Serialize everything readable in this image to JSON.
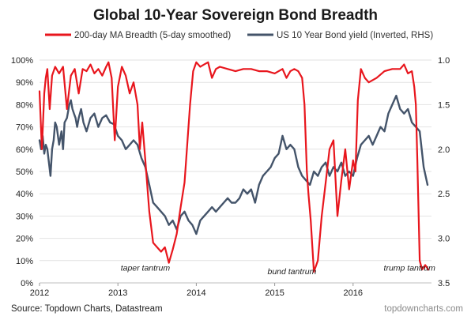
{
  "chart_data": {
    "type": "line",
    "title": "Global 10-Year Sovereign Bond Breadth",
    "x_ticks": [
      "2012",
      "2013",
      "2014",
      "2015",
      "2016"
    ],
    "xlim": [
      2012.0,
      2017.0
    ],
    "y_left": {
      "ticks": [
        "100%",
        "90%",
        "80%",
        "70%",
        "60%",
        "50%",
        "40%",
        "30%",
        "20%",
        "10%",
        "0%"
      ],
      "ylim": [
        0,
        100
      ],
      "unit": "%"
    },
    "y_right": {
      "ticks": [
        "1.0",
        "1.5",
        "2.0",
        "2.5",
        "3.0",
        "3.5"
      ],
      "ylim": [
        1.0,
        3.5
      ],
      "inverted": true
    },
    "grid": true,
    "legend_position": "top",
    "series": [
      {
        "name": "200-day MA Breadth (5-day smoothed)",
        "axis": "left",
        "color": "#e8161d",
        "x": [
          2012.0,
          2012.03,
          2012.06,
          2012.08,
          2012.1,
          2012.13,
          2012.16,
          2012.2,
          2012.25,
          2012.3,
          2012.35,
          2012.4,
          2012.45,
          2012.5,
          2012.55,
          2012.6,
          2012.65,
          2012.7,
          2012.75,
          2012.8,
          2012.85,
          2012.88,
          2012.92,
          2012.96,
          2013.0,
          2013.05,
          2013.1,
          2013.15,
          2013.2,
          2013.25,
          2013.28,
          2013.31,
          2013.35,
          2013.4,
          2013.45,
          2013.5,
          2013.55,
          2013.6,
          2013.65,
          2013.7,
          2013.75,
          2013.8,
          2013.85,
          2013.88,
          2013.92,
          2013.96,
          2014.0,
          2014.05,
          2014.1,
          2014.15,
          2014.2,
          2014.25,
          2014.3,
          2014.4,
          2014.5,
          2014.6,
          2014.7,
          2014.8,
          2014.9,
          2015.0,
          2015.05,
          2015.1,
          2015.15,
          2015.2,
          2015.25,
          2015.3,
          2015.35,
          2015.38,
          2015.41,
          2015.43,
          2015.46,
          2015.5,
          2015.55,
          2015.6,
          2015.65,
          2015.7,
          2015.75,
          2015.8,
          2015.85,
          2015.9,
          2015.95,
          2016.0,
          2016.03,
          2016.06,
          2016.1,
          2016.15,
          2016.2,
          2016.3,
          2016.4,
          2016.5,
          2016.6,
          2016.65,
          2016.7,
          2016.75,
          2016.78,
          2016.8,
          2016.82,
          2016.85,
          2016.88,
          2016.92,
          2016.96
        ],
        "values": [
          86,
          60,
          85,
          92,
          96,
          78,
          93,
          97,
          94,
          97,
          78,
          93,
          96,
          85,
          96,
          95,
          98,
          94,
          96,
          93,
          97,
          99,
          92,
          64,
          88,
          97,
          93,
          85,
          90,
          80,
          60,
          72,
          55,
          32,
          18,
          16,
          14,
          16,
          9,
          15,
          22,
          34,
          45,
          60,
          80,
          95,
          99,
          97,
          98,
          99,
          92,
          96,
          97,
          96,
          95,
          96,
          96,
          95,
          95,
          94,
          95,
          96,
          92,
          95,
          96,
          95,
          92,
          80,
          50,
          40,
          28,
          5,
          10,
          30,
          45,
          60,
          64,
          30,
          46,
          60,
          42,
          55,
          50,
          82,
          96,
          92,
          90,
          92,
          95,
          96,
          96,
          98,
          94,
          95,
          88,
          80,
          55,
          10,
          6,
          8,
          6
        ]
      },
      {
        "name": "US 10 Year Bond yield (Inverted, RHS)",
        "axis": "right",
        "color": "#44546a",
        "x": [
          2012.0,
          2012.02,
          2012.04,
          2012.06,
          2012.08,
          2012.1,
          2012.12,
          2012.14,
          2012.16,
          2012.18,
          2012.2,
          2012.22,
          2012.25,
          2012.28,
          2012.3,
          2012.32,
          2012.35,
          2012.38,
          2012.4,
          2012.42,
          2012.44,
          2012.46,
          2012.48,
          2012.5,
          2012.53,
          2012.56,
          2012.6,
          2012.65,
          2012.7,
          2012.75,
          2012.8,
          2012.85,
          2012.9,
          2012.95,
          2013.0,
          2013.05,
          2013.1,
          2013.15,
          2013.2,
          2013.25,
          2013.3,
          2013.35,
          2013.4,
          2013.45,
          2013.5,
          2013.55,
          2013.6,
          2013.65,
          2013.7,
          2013.75,
          2013.8,
          2013.85,
          2013.9,
          2013.95,
          2014.0,
          2014.05,
          2014.1,
          2014.15,
          2014.2,
          2014.25,
          2014.3,
          2014.35,
          2014.4,
          2014.45,
          2014.5,
          2014.55,
          2014.6,
          2014.65,
          2014.7,
          2014.75,
          2014.8,
          2014.85,
          2014.9,
          2014.95,
          2015.0,
          2015.05,
          2015.1,
          2015.15,
          2015.2,
          2015.25,
          2015.3,
          2015.35,
          2015.4,
          2015.45,
          2015.5,
          2015.55,
          2015.6,
          2015.65,
          2015.7,
          2015.75,
          2015.8,
          2015.85,
          2015.9,
          2015.95,
          2016.0,
          2016.05,
          2016.1,
          2016.15,
          2016.2,
          2016.25,
          2016.3,
          2016.35,
          2016.4,
          2016.45,
          2016.5,
          2016.55,
          2016.6,
          2016.65,
          2016.7,
          2016.75,
          2016.8,
          2016.85,
          2016.9,
          2016.95
        ],
        "values": [
          1.9,
          2.0,
          1.85,
          2.05,
          1.95,
          2.0,
          2.15,
          2.3,
          2.0,
          1.9,
          1.7,
          1.75,
          1.95,
          1.8,
          2.0,
          1.7,
          1.65,
          1.5,
          1.45,
          1.55,
          1.6,
          1.65,
          1.75,
          1.65,
          1.55,
          1.7,
          1.8,
          1.65,
          1.6,
          1.75,
          1.65,
          1.62,
          1.7,
          1.72,
          1.85,
          1.9,
          2.0,
          1.95,
          1.9,
          1.95,
          2.1,
          2.2,
          2.4,
          2.6,
          2.65,
          2.7,
          2.75,
          2.85,
          2.8,
          2.9,
          2.75,
          2.7,
          2.8,
          2.85,
          2.95,
          2.8,
          2.75,
          2.7,
          2.65,
          2.7,
          2.65,
          2.6,
          2.55,
          2.6,
          2.6,
          2.55,
          2.45,
          2.5,
          2.45,
          2.6,
          2.4,
          2.3,
          2.25,
          2.2,
          2.1,
          2.05,
          1.85,
          2.0,
          1.95,
          2.0,
          2.2,
          2.3,
          2.35,
          2.4,
          2.25,
          2.3,
          2.2,
          2.15,
          2.3,
          2.2,
          2.25,
          2.15,
          2.3,
          2.25,
          2.3,
          2.1,
          1.95,
          1.9,
          1.85,
          1.95,
          1.85,
          1.75,
          1.8,
          1.6,
          1.5,
          1.4,
          1.55,
          1.6,
          1.55,
          1.7,
          1.75,
          1.8,
          2.2,
          2.4
        ]
      }
    ],
    "annotations": [
      {
        "text": "taper tantrum",
        "x": 2013.35,
        "y": 4
      },
      {
        "text": "bund tantrum",
        "x": 2015.22,
        "y": 2.5
      },
      {
        "text": "trump tantrum",
        "x": 2016.72,
        "y": 4
      }
    ]
  },
  "footer": {
    "source": "Source: Topdown Charts, Datastream",
    "brand": "topdowncharts.com"
  },
  "colors": {
    "breadth": "#e8161d",
    "yield": "#44546a",
    "grid": "#e2e2e2"
  }
}
